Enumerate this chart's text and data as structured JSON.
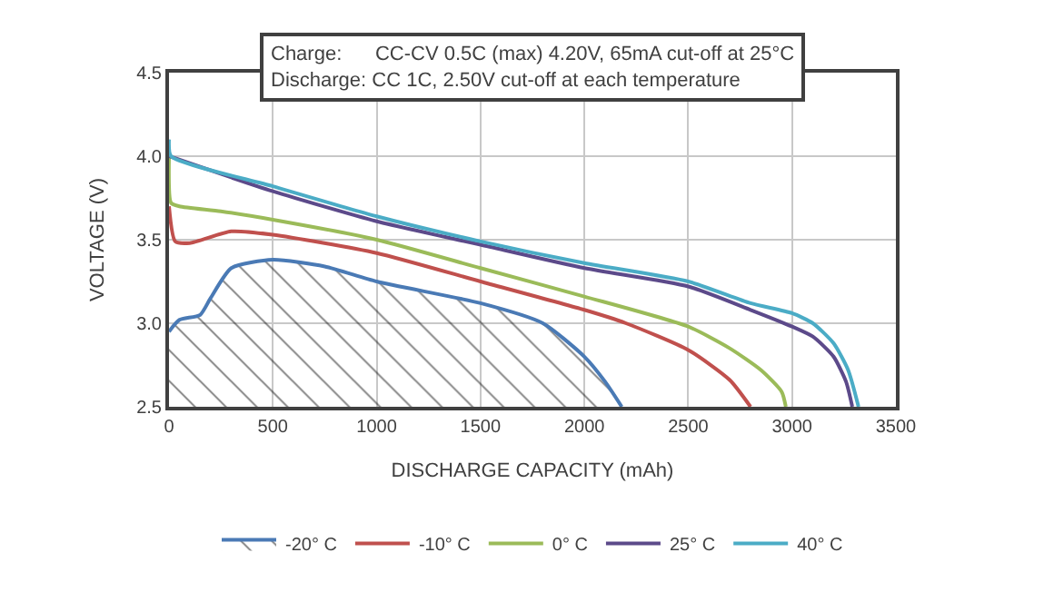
{
  "chart_data": {
    "type": "line",
    "xlabel": "DISCHARGE CAPACITY (mAh)",
    "ylabel": "VOLTAGE (V)",
    "annotations": [
      "Charge:      CC-CV 0.5C (max) 4.20V, 65mA cut-off at 25°C",
      "Discharge: CC 1C, 2.50V cut-off at each temperature"
    ],
    "xlim": [
      0,
      3500
    ],
    "xticks": [
      0,
      500,
      1000,
      1500,
      2000,
      2500,
      3000,
      3500
    ],
    "ylim": [
      2.5,
      4.5
    ],
    "yticks": [
      {
        "value": 2.5,
        "label": "2.5"
      },
      {
        "value": 3.0,
        "label": "3.0"
      },
      {
        "value": 3.5,
        "label": "3.5"
      },
      {
        "value": 4.0,
        "label": "4.0"
      },
      {
        "value": 4.5,
        "label": "4.5"
      }
    ],
    "grid": true,
    "legend": "bottom",
    "marker": "none",
    "line_style": "solid",
    "series": [
      {
        "name": "-20° C",
        "type": "area",
        "color": "#4a7ab5",
        "x": [
          0,
          50,
          150,
          200,
          300,
          500,
          750,
          1000,
          1500,
          1800,
          2000,
          2100,
          2180
        ],
        "values": [
          2.95,
          3.02,
          3.05,
          3.15,
          3.33,
          3.38,
          3.34,
          3.25,
          3.12,
          3.0,
          2.8,
          2.65,
          2.5
        ]
      },
      {
        "name": "-10° C",
        "color": "#c0504d",
        "x": [
          0,
          30,
          100,
          300,
          500,
          1000,
          1500,
          2000,
          2200,
          2500,
          2700,
          2800
        ],
        "values": [
          3.7,
          3.49,
          3.48,
          3.55,
          3.53,
          3.42,
          3.25,
          3.08,
          3.0,
          2.84,
          2.66,
          2.5
        ]
      },
      {
        "name": "0° C",
        "color": "#9bbb59",
        "x": [
          0,
          10,
          50,
          250,
          500,
          1000,
          1500,
          2000,
          2500,
          2700,
          2850,
          2950,
          2970
        ],
        "values": [
          4.0,
          3.72,
          3.7,
          3.67,
          3.62,
          3.5,
          3.33,
          3.16,
          2.98,
          2.85,
          2.72,
          2.59,
          2.5
        ]
      },
      {
        "name": "25° C",
        "color": "#5c4a8a",
        "x": [
          0,
          500,
          1000,
          1500,
          2000,
          2500,
          2800,
          3000,
          3100,
          3200,
          3260,
          3290
        ],
        "values": [
          4.0,
          3.79,
          3.61,
          3.47,
          3.33,
          3.22,
          3.08,
          2.98,
          2.92,
          2.8,
          2.65,
          2.5
        ]
      },
      {
        "name": "40° C",
        "color": "#4bacc6",
        "x": [
          0,
          10,
          500,
          1000,
          1500,
          2000,
          2500,
          2800,
          3000,
          3100,
          3200,
          3270,
          3320
        ],
        "values": [
          4.1,
          4.0,
          3.82,
          3.64,
          3.49,
          3.36,
          3.25,
          3.12,
          3.06,
          3.0,
          2.88,
          2.72,
          2.5
        ]
      }
    ]
  }
}
